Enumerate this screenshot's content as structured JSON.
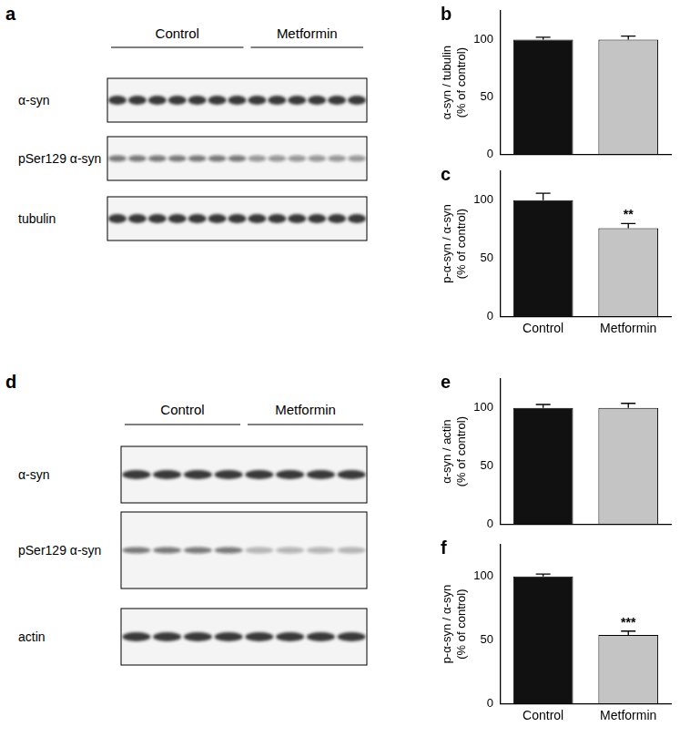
{
  "blots": [
    {
      "title": "a",
      "groups": [
        {
          "label": "Control",
          "lanes": 7
        },
        {
          "label": "Metformin",
          "lanes": 6
        }
      ],
      "rows": [
        "α-syn",
        "pSer129 α-syn",
        "tubulin"
      ]
    },
    {
      "title": "d",
      "groups": [
        {
          "label": "Control",
          "lanes": 4
        },
        {
          "label": "Metformin",
          "lanes": 4
        }
      ],
      "rows": [
        "α-syn",
        "pSer129 α-syn",
        "actin"
      ]
    }
  ],
  "chart_data": [
    {
      "type": "bar",
      "title": "b",
      "ylabel": [
        "α-syn / tubulin",
        "(% of control)"
      ],
      "categories": [
        "Control",
        "Metformin"
      ],
      "values": [
        100,
        100
      ],
      "errors": [
        2,
        3
      ],
      "colors": [
        "#111111",
        "#c4c4c4"
      ],
      "ylim": [
        0,
        125
      ],
      "yticks": [
        0,
        50,
        100
      ],
      "grid": false,
      "tick_labels": "y"
    },
    {
      "type": "bar",
      "title": "c",
      "ylabel": [
        "p-α-syn / α-syn",
        "(% of control)"
      ],
      "categories": [
        "Control",
        "Metformin"
      ],
      "values": [
        100,
        76
      ],
      "errors": [
        6,
        4
      ],
      "colors": [
        "#111111",
        "#c4c4c4"
      ],
      "ylim": [
        0,
        125
      ],
      "yticks": [
        0,
        50,
        100
      ],
      "grid": false,
      "annotations": [
        {
          "text": "**",
          "x": "Metformin"
        }
      ]
    },
    {
      "type": "bar",
      "title": "e",
      "ylabel": [
        "α-syn / actin",
        "(% of control)"
      ],
      "categories": [
        "Control",
        "Metformin"
      ],
      "values": [
        100,
        100
      ],
      "errors": [
        3,
        4
      ],
      "colors": [
        "#111111",
        "#c4c4c4"
      ],
      "ylim": [
        0,
        125
      ],
      "yticks": [
        0,
        50,
        100
      ],
      "grid": false,
      "tick_labels": "y"
    },
    {
      "type": "bar",
      "title": "f",
      "ylabel": [
        "p-α-syn / α-syn",
        "(% of control)"
      ],
      "categories": [
        "Control",
        "Metformin"
      ],
      "values": [
        100,
        54
      ],
      "errors": [
        2,
        3
      ],
      "colors": [
        "#111111",
        "#c4c4c4"
      ],
      "ylim": [
        0,
        125
      ],
      "yticks": [
        0,
        50,
        100
      ],
      "grid": false,
      "annotations": [
        {
          "text": "***",
          "x": "Metformin"
        }
      ]
    }
  ]
}
